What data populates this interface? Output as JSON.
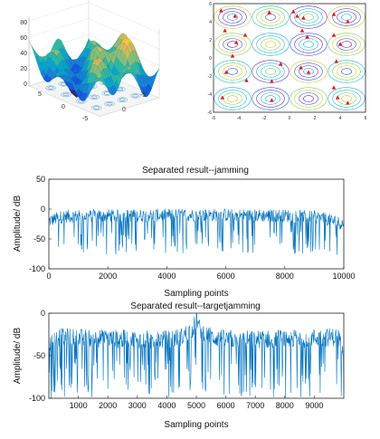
{
  "chart_data": [
    {
      "type": "surface",
      "z_ticks": [
        "0",
        "20",
        "40",
        "60",
        "80"
      ],
      "x_ticks": [
        "5",
        "0",
        "-5"
      ],
      "y_ticks": [
        "0",
        "-5"
      ],
      "colormap": [
        "#352a87",
        "#0f5cdd",
        "#1481d6",
        "#06a4ca",
        "#2eb7a4",
        "#87bf77",
        "#d1bb59",
        "#fec832",
        "#f9fb0e"
      ]
    },
    {
      "type": "contour",
      "x_ticks": [
        "-6",
        "-4",
        "-2",
        "0",
        "2",
        "4",
        "6"
      ],
      "y_ticks": [
        "6",
        "4",
        "2",
        "0",
        "-2",
        "-4",
        "-6"
      ],
      "xlim": [
        -6,
        6
      ],
      "ylim": [
        -6,
        6
      ],
      "marker_color": "#e0191c",
      "markers": [
        [
          -5.4,
          5.2
        ],
        [
          -4.3,
          4.6
        ],
        [
          -1.6,
          5.0
        ],
        [
          0.3,
          5.1
        ],
        [
          0.6,
          4.6
        ],
        [
          1.1,
          4.4
        ],
        [
          3.5,
          4.8
        ],
        [
          4.6,
          4.0
        ],
        [
          -5.1,
          3.0
        ],
        [
          -3.5,
          2.5
        ],
        [
          -4.2,
          1.7
        ],
        [
          1.4,
          2.3
        ],
        [
          1.0,
          3.0
        ],
        [
          3.5,
          2.5
        ],
        [
          4.0,
          1.5
        ],
        [
          -4.5,
          0.2
        ],
        [
          -5.0,
          -1.6
        ],
        [
          -0.7,
          -0.7
        ],
        [
          1.5,
          -1.6
        ],
        [
          3.7,
          -0.4
        ],
        [
          -3.4,
          -2.5
        ],
        [
          -1.4,
          -2.6
        ],
        [
          0.9,
          -1.1
        ],
        [
          3.5,
          -3.3
        ],
        [
          -5.3,
          -4.4
        ],
        [
          -1.4,
          -4.7
        ],
        [
          3.8,
          -4.4
        ],
        [
          4.6,
          -5.0
        ]
      ]
    },
    {
      "type": "line",
      "title": "Separated result--jamming",
      "xlabel": "Sampling points",
      "ylabel": "Amplitude/ dB",
      "xlim": [
        0,
        10000
      ],
      "ylim": [
        -100,
        50
      ],
      "x_ticks": [
        0,
        2000,
        4000,
        6000,
        8000,
        10000
      ],
      "y_ticks": [
        -100,
        -50,
        0,
        50
      ],
      "series": [
        {
          "x": [
            0,
            500,
            1000,
            2000,
            3000,
            4000,
            5000,
            6000,
            7000,
            8000,
            9000,
            9500,
            10000
          ],
          "y": [
            -20,
            -12,
            -12,
            -11,
            -11,
            -10,
            -10,
            -10,
            -11,
            -11,
            -13,
            -18,
            -25
          ]
        }
      ],
      "line_color": "#0072bd"
    },
    {
      "type": "line",
      "title": "Separated result--targetjamming",
      "xlabel": "Sampling points",
      "ylabel": "Amplitude/ dB",
      "xlim": [
        0,
        10000
      ],
      "ylim": [
        -100,
        0
      ],
      "x_ticks": [
        1000,
        2000,
        3000,
        4000,
        5000,
        6000,
        7000,
        8000,
        9000
      ],
      "y_ticks": [
        -100,
        -50,
        0
      ],
      "series": [
        {
          "x": [
            0,
            200,
            1000,
            2000,
            3000,
            4000,
            4500,
            4900,
            5000,
            5100,
            5500,
            6000,
            7000,
            8000,
            9000,
            9800,
            10000
          ],
          "y": [
            -40,
            -28,
            -29,
            -30,
            -31,
            -31,
            -28,
            -18,
            -6,
            -18,
            -28,
            -31,
            -31,
            -30,
            -29,
            -28,
            -40
          ]
        }
      ],
      "line_color": "#0072bd"
    }
  ]
}
